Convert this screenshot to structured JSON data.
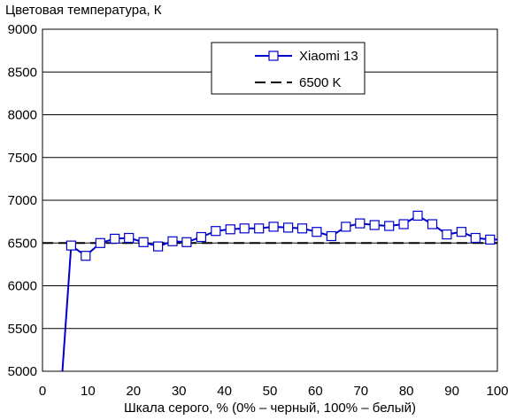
{
  "chart_data": {
    "type": "line",
    "title": "",
    "ylabel": "Цветовая температура, К",
    "xlabel": "Шкала серого, % (0% – черный, 100% – белый)",
    "xlim": [
      0,
      100
    ],
    "ylim": [
      5000,
      9000
    ],
    "xticks": [
      0,
      10,
      20,
      30,
      40,
      50,
      60,
      70,
      80,
      90,
      100
    ],
    "yticks": [
      5000,
      5500,
      6000,
      6500,
      7000,
      7500,
      8000,
      8500,
      9000
    ],
    "grid": "horizontal",
    "legend_position": "top-right",
    "series": [
      {
        "name": "Xiaomi 13",
        "color": "#0000cc",
        "marker": "square",
        "x": [
          4.3,
          6.3,
          9.5,
          12.7,
          15.9,
          19.0,
          22.2,
          25.4,
          28.6,
          31.7,
          34.9,
          38.1,
          41.3,
          44.4,
          47.6,
          50.8,
          54.0,
          57.1,
          60.3,
          63.5,
          66.7,
          69.8,
          73.0,
          76.2,
          79.4,
          82.5,
          85.7,
          88.9,
          92.1,
          95.2,
          98.4,
          100
        ],
        "y": [
          4940,
          6470,
          6350,
          6500,
          6550,
          6560,
          6510,
          6460,
          6520,
          6510,
          6570,
          6640,
          6660,
          6670,
          6670,
          6690,
          6680,
          6670,
          6630,
          6580,
          6690,
          6730,
          6710,
          6700,
          6720,
          6820,
          6720,
          6600,
          6630,
          6560,
          6540,
          6540
        ],
        "marker_visible": [
          false,
          true,
          true,
          true,
          true,
          true,
          true,
          true,
          true,
          true,
          true,
          true,
          true,
          true,
          true,
          true,
          true,
          true,
          true,
          true,
          true,
          true,
          true,
          true,
          true,
          true,
          true,
          true,
          true,
          true,
          true,
          false
        ]
      },
      {
        "name": "6500 K",
        "color": "#000000",
        "style": "dashed",
        "x": [
          0,
          100
        ],
        "y": [
          6500,
          6500
        ]
      }
    ]
  }
}
